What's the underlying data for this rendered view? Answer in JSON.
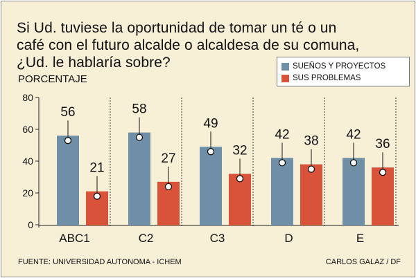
{
  "title_lines": [
    "Si Ud. tuviese la oportunidad de tomar un té o un",
    "café con el futuro alcalde o alcaldesa de su comuna,",
    "¿Ud. le hablaría sobre?"
  ],
  "legend": {
    "series1": "SUEÑOS Y PROYECTOS",
    "series2": "SUS PROBLEMAS"
  },
  "footer": {
    "source": "FUENTE: UNIVERSIDAD AUTONOMA - ICHEM",
    "credit": "CARLOS GALAZ / DF"
  },
  "colors": {
    "background": "#f7efd6",
    "series1": "#6e8fa6",
    "series2": "#d9533b"
  },
  "chart_data": {
    "type": "bar",
    "title": "Si Ud. tuviese la oportunidad de tomar un té o un café con el futuro alcalde o alcaldesa de su comuna, ¿Ud. le hablaría sobre?",
    "ylabel": "PORCENTAJE",
    "xlabel": "",
    "ylim": [
      0,
      80
    ],
    "yticks": [
      0,
      20,
      40,
      60,
      80
    ],
    "categories": [
      "ABC1",
      "C2",
      "C3",
      "D",
      "E"
    ],
    "series": [
      {
        "name": "SUEÑOS Y PROYECTOS",
        "values": [
          56,
          58,
          49,
          42,
          42
        ]
      },
      {
        "name": "SUS PROBLEMAS",
        "values": [
          21,
          27,
          32,
          38,
          36
        ]
      }
    ],
    "legend_position": "top-right"
  }
}
